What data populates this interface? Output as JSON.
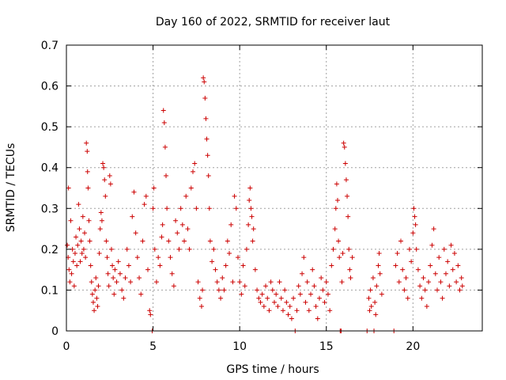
{
  "chart_data": {
    "type": "scatter",
    "title": "Day 160 of 2022, SRMTID for receiver laut",
    "xlabel": "GPS time / hours",
    "ylabel": "SRMTID / TECUs",
    "xlim": [
      0,
      24
    ],
    "ylim": [
      0,
      0.7
    ],
    "xticks": [
      0,
      5,
      10,
      15,
      20
    ],
    "xtick_labels": [
      "0",
      "5",
      "10",
      "15",
      "20"
    ],
    "yticks": [
      0,
      0.1,
      0.2,
      0.3,
      0.4,
      0.5,
      0.6,
      0.7
    ],
    "ytick_labels": [
      "0",
      "0.1",
      "0.2",
      "0.3",
      "0.4",
      "0.5",
      "0.6",
      "0.7"
    ],
    "grid": true,
    "marker": "plus",
    "color": "#cc0000",
    "series": [
      {
        "name": "SRMTID",
        "points": [
          [
            0.05,
            0.21
          ],
          [
            0.1,
            0.18
          ],
          [
            0.12,
            0.35
          ],
          [
            0.15,
            0.15
          ],
          [
            0.2,
            0.12
          ],
          [
            0.25,
            0.27
          ],
          [
            0.3,
            0.14
          ],
          [
            0.35,
            0.2
          ],
          [
            0.4,
            0.17
          ],
          [
            0.45,
            0.11
          ],
          [
            0.5,
            0.19
          ],
          [
            0.55,
            0.23
          ],
          [
            0.6,
            0.16
          ],
          [
            0.65,
            0.21
          ],
          [
            0.7,
            0.31
          ],
          [
            0.75,
            0.25
          ],
          [
            0.8,
            0.17
          ],
          [
            0.85,
            0.22
          ],
          [
            0.9,
            0.19
          ],
          [
            0.95,
            0.28
          ],
          [
            1.0,
            0.2
          ],
          [
            1.05,
            0.24
          ],
          [
            1.1,
            0.18
          ],
          [
            1.15,
            0.46
          ],
          [
            1.2,
            0.44
          ],
          [
            1.22,
            0.39
          ],
          [
            1.25,
            0.35
          ],
          [
            1.3,
            0.27
          ],
          [
            1.35,
            0.22
          ],
          [
            1.4,
            0.16
          ],
          [
            1.45,
            0.12
          ],
          [
            1.5,
            0.09
          ],
          [
            1.55,
            0.07
          ],
          [
            1.6,
            0.05
          ],
          [
            1.65,
            0.1
          ],
          [
            1.7,
            0.13
          ],
          [
            1.75,
            0.08
          ],
          [
            1.8,
            0.06
          ],
          [
            1.85,
            0.11
          ],
          [
            1.9,
            0.19
          ],
          [
            1.95,
            0.25
          ],
          [
            2.0,
            0.29
          ],
          [
            2.05,
            0.27
          ],
          [
            2.1,
            0.41
          ],
          [
            2.15,
            0.4
          ],
          [
            2.2,
            0.37
          ],
          [
            2.25,
            0.33
          ],
          [
            2.3,
            0.22
          ],
          [
            2.35,
            0.18
          ],
          [
            2.4,
            0.14
          ],
          [
            2.45,
            0.11
          ],
          [
            2.5,
            0.38
          ],
          [
            2.55,
            0.36
          ],
          [
            2.6,
            0.2
          ],
          [
            2.65,
            0.16
          ],
          [
            2.7,
            0.13
          ],
          [
            2.75,
            0.09
          ],
          [
            2.8,
            0.15
          ],
          [
            2.9,
            0.12
          ],
          [
            3.0,
            0.17
          ],
          [
            3.1,
            0.14
          ],
          [
            3.2,
            0.1
          ],
          [
            3.3,
            0.08
          ],
          [
            3.4,
            0.13
          ],
          [
            3.5,
            0.2
          ],
          [
            3.6,
            0.16
          ],
          [
            3.7,
            0.12
          ],
          [
            3.8,
            0.28
          ],
          [
            3.9,
            0.34
          ],
          [
            4.0,
            0.24
          ],
          [
            4.1,
            0.18
          ],
          [
            4.2,
            0.13
          ],
          [
            4.3,
            0.09
          ],
          [
            4.4,
            0.22
          ],
          [
            4.5,
            0.31
          ],
          [
            4.6,
            0.33
          ],
          [
            4.7,
            0.15
          ],
          [
            4.8,
            0.05
          ],
          [
            4.85,
            0.04
          ],
          [
            4.95,
            0.0
          ],
          [
            5.0,
            0.3
          ],
          [
            5.05,
            0.35
          ],
          [
            5.1,
            0.2
          ],
          [
            5.2,
            0.12
          ],
          [
            5.3,
            0.18
          ],
          [
            5.4,
            0.16
          ],
          [
            5.5,
            0.23
          ],
          [
            5.55,
            0.26
          ],
          [
            5.6,
            0.54
          ],
          [
            5.65,
            0.51
          ],
          [
            5.7,
            0.45
          ],
          [
            5.75,
            0.38
          ],
          [
            5.8,
            0.3
          ],
          [
            5.9,
            0.22
          ],
          [
            6.0,
            0.18
          ],
          [
            6.1,
            0.14
          ],
          [
            6.2,
            0.11
          ],
          [
            6.3,
            0.27
          ],
          [
            6.4,
            0.24
          ],
          [
            6.5,
            0.2
          ],
          [
            6.6,
            0.3
          ],
          [
            6.7,
            0.26
          ],
          [
            6.8,
            0.22
          ],
          [
            6.9,
            0.33
          ],
          [
            7.0,
            0.25
          ],
          [
            7.1,
            0.2
          ],
          [
            7.2,
            0.35
          ],
          [
            7.3,
            0.39
          ],
          [
            7.4,
            0.41
          ],
          [
            7.5,
            0.3
          ],
          [
            7.6,
            0.12
          ],
          [
            7.7,
            0.08
          ],
          [
            7.8,
            0.06
          ],
          [
            7.85,
            0.1
          ],
          [
            7.9,
            0.62
          ],
          [
            7.95,
            0.61
          ],
          [
            8.0,
            0.57
          ],
          [
            8.05,
            0.52
          ],
          [
            8.1,
            0.47
          ],
          [
            8.15,
            0.43
          ],
          [
            8.2,
            0.38
          ],
          [
            8.25,
            0.3
          ],
          [
            8.3,
            0.22
          ],
          [
            8.4,
            0.17
          ],
          [
            8.5,
            0.2
          ],
          [
            8.6,
            0.15
          ],
          [
            8.7,
            0.12
          ],
          [
            8.8,
            0.1
          ],
          [
            8.9,
            0.08
          ],
          [
            9.0,
            0.13
          ],
          [
            9.1,
            0.1
          ],
          [
            9.2,
            0.16
          ],
          [
            9.3,
            0.22
          ],
          [
            9.4,
            0.19
          ],
          [
            9.5,
            0.26
          ],
          [
            9.6,
            0.12
          ],
          [
            9.7,
            0.33
          ],
          [
            9.8,
            0.3
          ],
          [
            9.9,
            0.18
          ],
          [
            10.0,
            0.12
          ],
          [
            10.1,
            0.09
          ],
          [
            10.2,
            0.16
          ],
          [
            10.3,
            0.11
          ],
          [
            10.4,
            0.2
          ],
          [
            10.5,
            0.26
          ],
          [
            10.55,
            0.32
          ],
          [
            10.6,
            0.35
          ],
          [
            10.65,
            0.3
          ],
          [
            10.7,
            0.28
          ],
          [
            10.75,
            0.22
          ],
          [
            10.8,
            0.25
          ],
          [
            10.9,
            0.15
          ],
          [
            11.0,
            0.1
          ],
          [
            11.1,
            0.08
          ],
          [
            11.2,
            0.07
          ],
          [
            11.3,
            0.09
          ],
          [
            11.4,
            0.06
          ],
          [
            11.5,
            0.11
          ],
          [
            11.6,
            0.08
          ],
          [
            11.7,
            0.05
          ],
          [
            11.8,
            0.12
          ],
          [
            11.9,
            0.1
          ],
          [
            12.0,
            0.07
          ],
          [
            12.1,
            0.09
          ],
          [
            12.2,
            0.06
          ],
          [
            12.3,
            0.12
          ],
          [
            12.4,
            0.08
          ],
          [
            12.5,
            0.05
          ],
          [
            12.6,
            0.1
          ],
          [
            12.7,
            0.07
          ],
          [
            12.8,
            0.04
          ],
          [
            12.9,
            0.06
          ],
          [
            13.0,
            0.03
          ],
          [
            13.1,
            0.08
          ],
          [
            13.2,
            0.0
          ],
          [
            13.3,
            0.05
          ],
          [
            13.4,
            0.11
          ],
          [
            13.5,
            0.09
          ],
          [
            13.6,
            0.14
          ],
          [
            13.7,
            0.18
          ],
          [
            13.8,
            0.07
          ],
          [
            13.9,
            0.12
          ],
          [
            14.0,
            0.05
          ],
          [
            14.1,
            0.09
          ],
          [
            14.2,
            0.15
          ],
          [
            14.3,
            0.11
          ],
          [
            14.4,
            0.06
          ],
          [
            14.5,
            0.03
          ],
          [
            14.6,
            0.08
          ],
          [
            14.7,
            0.13
          ],
          [
            14.8,
            0.1
          ],
          [
            14.9,
            0.07
          ],
          [
            15.0,
            0.12
          ],
          [
            15.1,
            0.09
          ],
          [
            15.2,
            0.05
          ],
          [
            15.3,
            0.16
          ],
          [
            15.4,
            0.2
          ],
          [
            15.5,
            0.25
          ],
          [
            15.55,
            0.3
          ],
          [
            15.6,
            0.36
          ],
          [
            15.65,
            0.32
          ],
          [
            15.7,
            0.22
          ],
          [
            15.75,
            0.18
          ],
          [
            15.8,
            0.0
          ],
          [
            15.85,
            0.0
          ],
          [
            15.9,
            0.12
          ],
          [
            15.95,
            0.19
          ],
          [
            16.0,
            0.46
          ],
          [
            16.05,
            0.45
          ],
          [
            16.1,
            0.41
          ],
          [
            16.15,
            0.37
          ],
          [
            16.2,
            0.33
          ],
          [
            16.25,
            0.28
          ],
          [
            16.3,
            0.2
          ],
          [
            16.35,
            0.15
          ],
          [
            16.4,
            0.13
          ],
          [
            16.5,
            0.18
          ],
          [
            17.35,
            0.0
          ],
          [
            17.45,
            0.08
          ],
          [
            17.5,
            0.05
          ],
          [
            17.55,
            0.1
          ],
          [
            17.6,
            0.06
          ],
          [
            17.7,
            0.13
          ],
          [
            17.75,
            0.0
          ],
          [
            17.8,
            0.07
          ],
          [
            17.85,
            0.04
          ],
          [
            17.9,
            0.11
          ],
          [
            18.0,
            0.16
          ],
          [
            18.05,
            0.19
          ],
          [
            18.1,
            0.14
          ],
          [
            18.2,
            0.09
          ],
          [
            18.9,
            0.0
          ],
          [
            19.0,
            0.16
          ],
          [
            19.1,
            0.19
          ],
          [
            19.2,
            0.12
          ],
          [
            19.3,
            0.22
          ],
          [
            19.4,
            0.15
          ],
          [
            19.5,
            0.1
          ],
          [
            19.6,
            0.13
          ],
          [
            19.7,
            0.08
          ],
          [
            19.8,
            0.2
          ],
          [
            19.9,
            0.17
          ],
          [
            20.0,
            0.24
          ],
          [
            20.05,
            0.3
          ],
          [
            20.1,
            0.28
          ],
          [
            20.15,
            0.26
          ],
          [
            20.2,
            0.2
          ],
          [
            20.3,
            0.15
          ],
          [
            20.4,
            0.11
          ],
          [
            20.5,
            0.08
          ],
          [
            20.6,
            0.13
          ],
          [
            20.7,
            0.1
          ],
          [
            20.8,
            0.06
          ],
          [
            20.9,
            0.12
          ],
          [
            21.0,
            0.16
          ],
          [
            21.1,
            0.21
          ],
          [
            21.2,
            0.25
          ],
          [
            21.3,
            0.14
          ],
          [
            21.4,
            0.1
          ],
          [
            21.5,
            0.18
          ],
          [
            21.6,
            0.12
          ],
          [
            21.7,
            0.08
          ],
          [
            21.8,
            0.2
          ],
          [
            21.9,
            0.14
          ],
          [
            22.0,
            0.17
          ],
          [
            22.1,
            0.11
          ],
          [
            22.2,
            0.21
          ],
          [
            22.3,
            0.15
          ],
          [
            22.4,
            0.19
          ],
          [
            22.5,
            0.12
          ],
          [
            22.6,
            0.16
          ],
          [
            22.7,
            0.1
          ],
          [
            22.8,
            0.13
          ],
          [
            22.85,
            0.11
          ]
        ]
      }
    ]
  }
}
